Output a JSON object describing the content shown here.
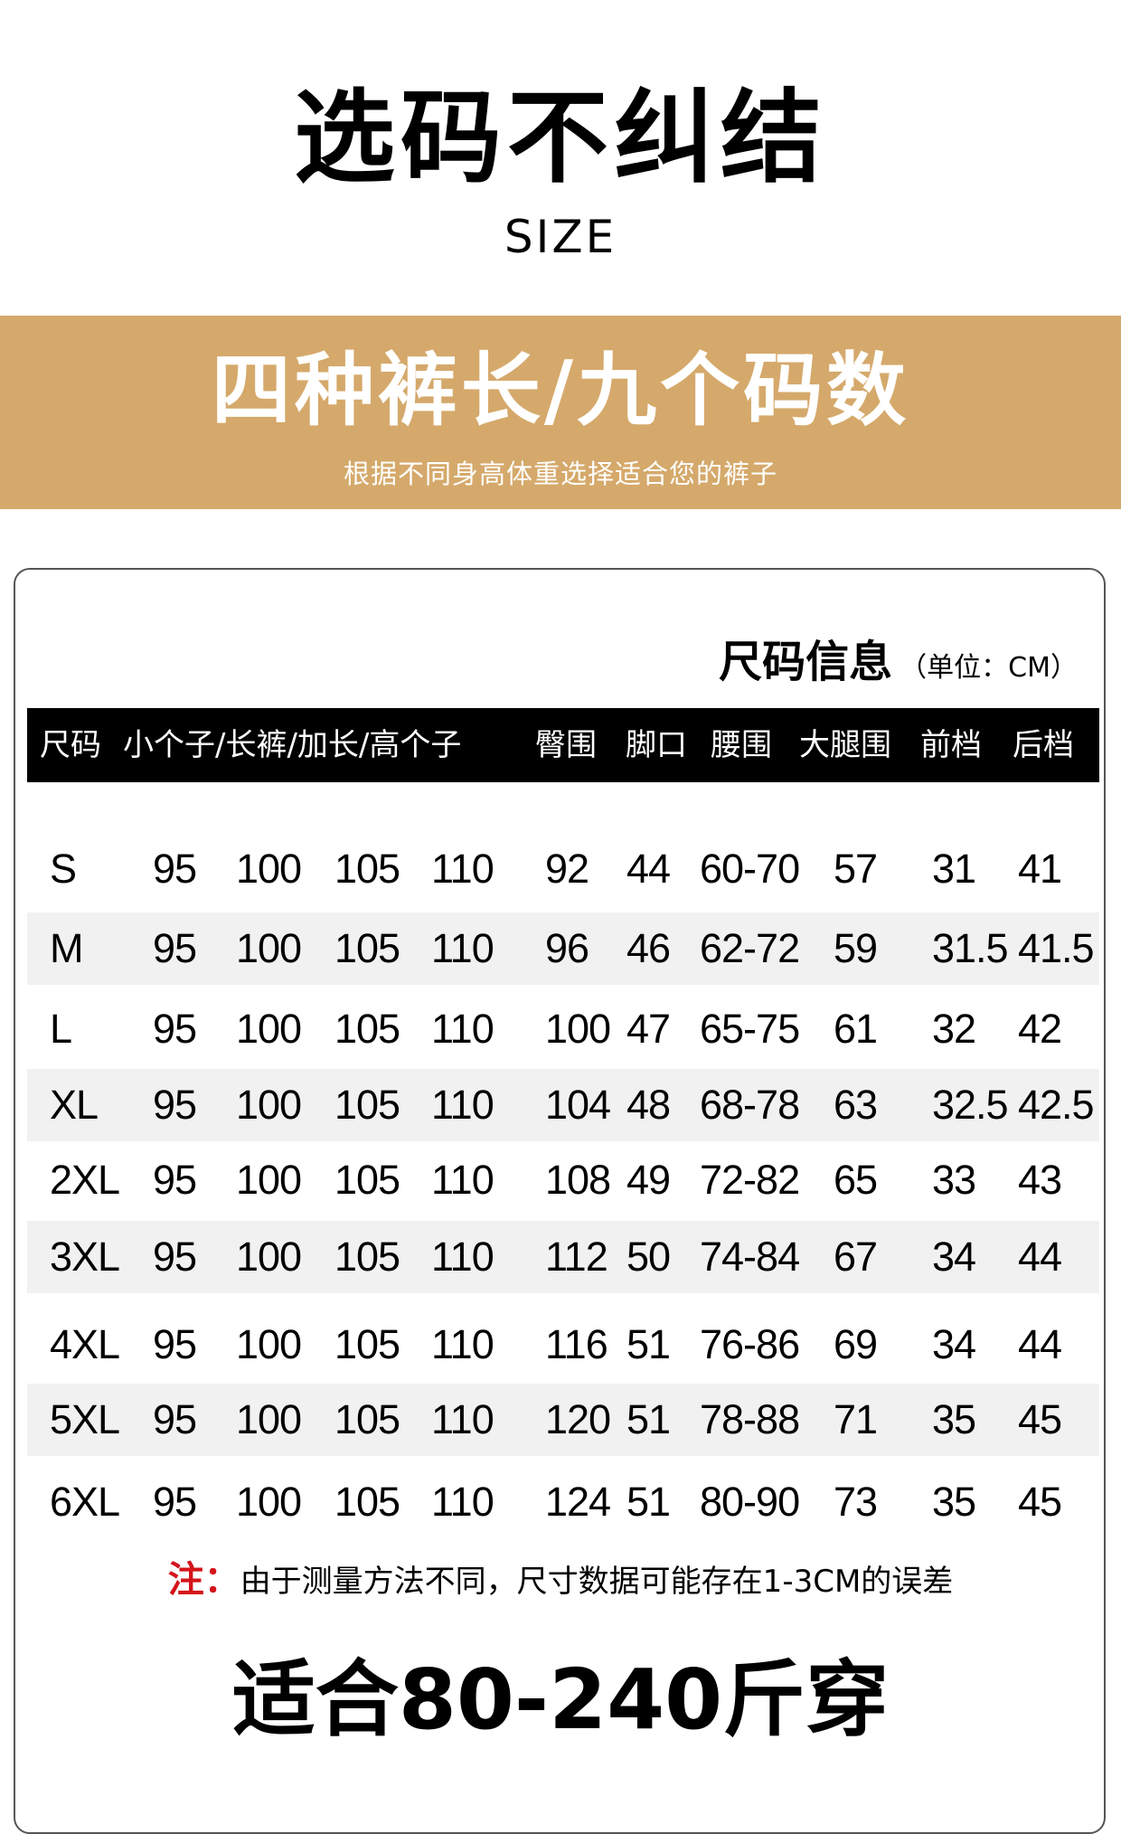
{
  "header": {
    "title": "选码不纠结",
    "subtitle": "SIZE"
  },
  "band": {
    "title": "四种裤长/九个码数",
    "subtitle": "根据不同身高体重选择适合您的裤子",
    "color": "#d5a96b"
  },
  "table": {
    "heading": "尺码信息",
    "unit": "（单位：CM）",
    "columns": [
      "尺码",
      "小个子/长裤/加长/高个子",
      "臀围",
      "脚口",
      "腰围",
      "大腿围",
      "前档",
      "后档"
    ],
    "rows": [
      [
        "S",
        "95",
        "100",
        "105",
        "110",
        "92",
        "44",
        "60-70",
        "57",
        "31",
        "41"
      ],
      [
        "M",
        "95",
        "100",
        "105",
        "110",
        "96",
        "46",
        "62-72",
        "59",
        "31.5",
        "41.5"
      ],
      [
        "L",
        "95",
        "100",
        "105",
        "110",
        "100",
        "47",
        "65-75",
        "61",
        "32",
        "42"
      ],
      [
        "XL",
        "95",
        "100",
        "105",
        "110",
        "104",
        "48",
        "68-78",
        "63",
        "32.5",
        "42.5"
      ],
      [
        "2XL",
        "95",
        "100",
        "105",
        "110",
        "108",
        "49",
        "72-82",
        "65",
        "33",
        "43"
      ],
      [
        "3XL",
        "95",
        "100",
        "105",
        "110",
        "112",
        "50",
        "74-84",
        "67",
        "34",
        "44"
      ],
      [
        "4XL",
        "95",
        "100",
        "105",
        "110",
        "116",
        "51",
        "76-86",
        "69",
        "34",
        "44"
      ],
      [
        "5XL",
        "95",
        "100",
        "105",
        "110",
        "120",
        "51",
        "78-88",
        "71",
        "35",
        "45"
      ],
      [
        "6XL",
        "95",
        "100",
        "105",
        "110",
        "124",
        "51",
        "80-90",
        "73",
        "35",
        "45"
      ]
    ]
  },
  "note": {
    "label": "注：",
    "text": "由于测量方法不同，尺寸数据可能存在1-3CM的误差",
    "label_color": "#d4141a"
  },
  "footer": {
    "text": "适合80-240斤穿"
  }
}
